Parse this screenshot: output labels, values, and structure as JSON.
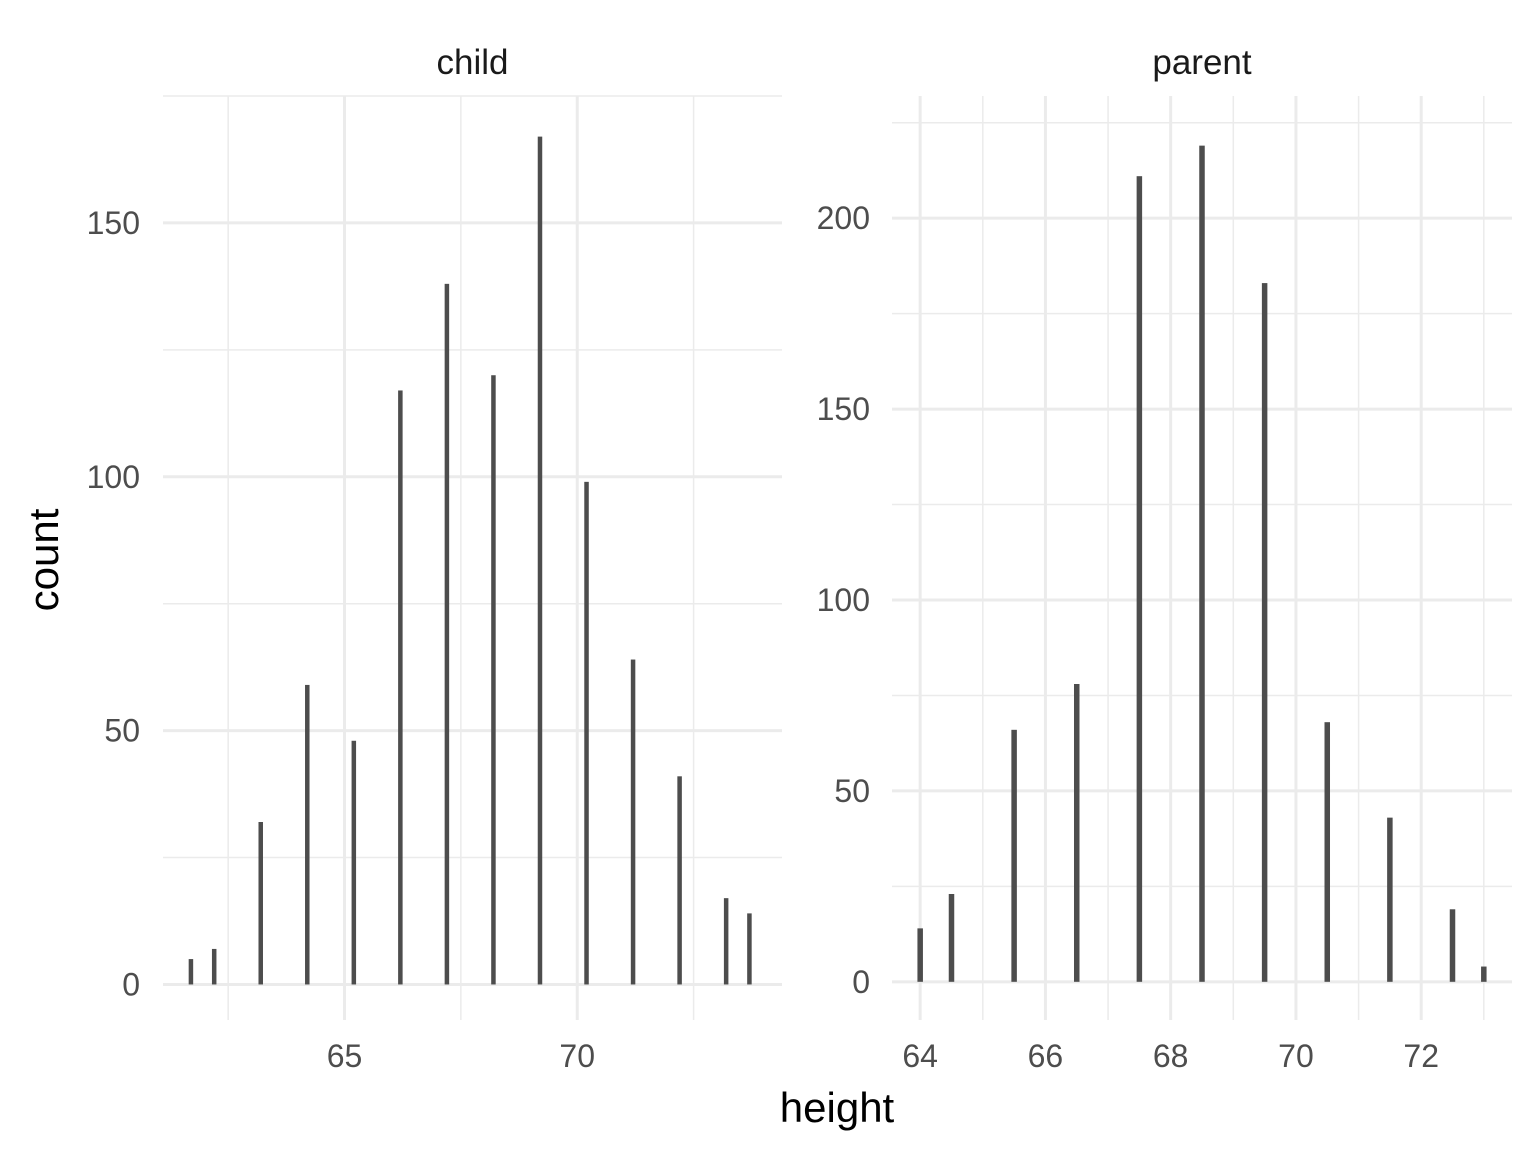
{
  "chart_data": [
    {
      "type": "bar",
      "facet": "child",
      "x": [
        61.7,
        62.2,
        63.2,
        64.2,
        65.2,
        66.2,
        67.2,
        68.2,
        69.2,
        70.2,
        71.2,
        72.2,
        73.2,
        73.7
      ],
      "values": [
        5,
        7,
        32,
        59,
        48,
        117,
        138,
        120,
        167,
        99,
        64,
        41,
        17,
        14
      ],
      "xticks": [
        65,
        70
      ],
      "yticks": [
        0,
        50,
        100,
        150
      ],
      "xlim": [
        61.1,
        74.4
      ],
      "ylim": [
        -7,
        175
      ]
    },
    {
      "type": "bar",
      "facet": "parent",
      "x": [
        64.0,
        64.5,
        65.5,
        66.5,
        67.5,
        68.5,
        69.5,
        70.5,
        71.5,
        72.5,
        73.0
      ],
      "values": [
        14,
        23,
        66,
        78,
        211,
        219,
        183,
        68,
        43,
        19,
        4
      ],
      "xticks": [
        64,
        66,
        68,
        70,
        72
      ],
      "yticks": [
        0,
        50,
        100,
        150,
        200
      ],
      "xlim": [
        63.55,
        73.45
      ],
      "ylim": [
        -10,
        232
      ]
    }
  ],
  "xlabel": "height",
  "ylabel": "count",
  "colors": {
    "bar": "#4d4d4d",
    "grid": "#ebebeb",
    "background": "#ffffff"
  }
}
